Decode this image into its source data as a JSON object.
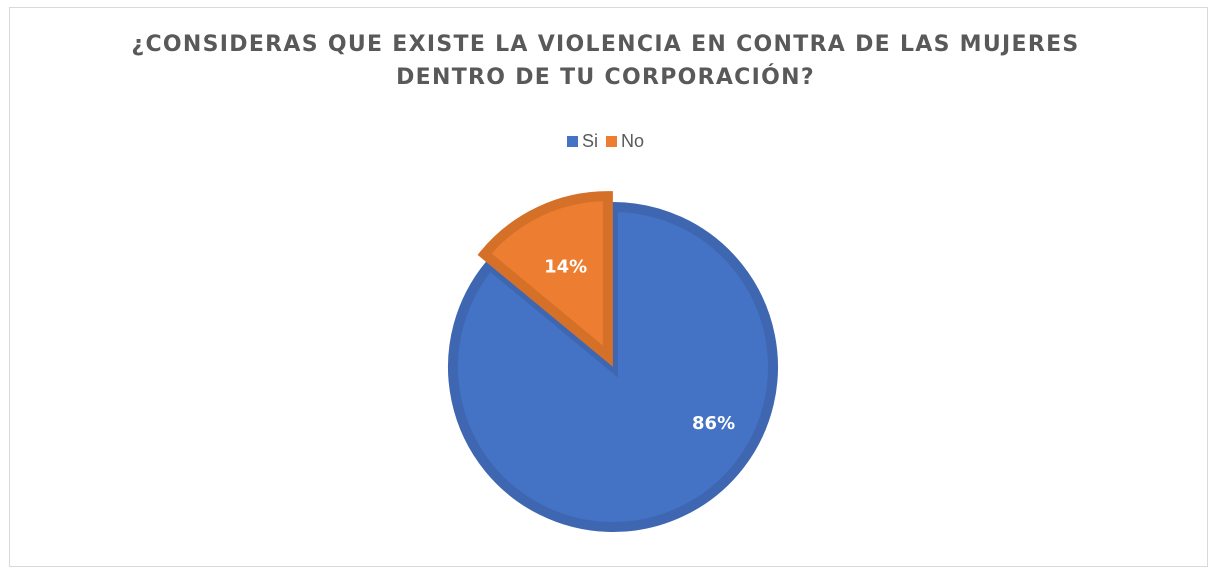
{
  "chart_data": {
    "type": "pie",
    "title": "¿CONSIDERAS QUE EXISTE LA VIOLENCIA EN CONTRA DE LAS MUJERES DENTRO DE TU CORPORACIÓN?",
    "title_lines": [
      "¿CONSIDERAS QUE EXISTE LA VIOLENCIA EN CONTRA DE LAS MUJERES",
      "DENTRO DE TU CORPORACIÓN?"
    ],
    "categories": [
      "Si",
      "No"
    ],
    "values": [
      86,
      14
    ],
    "data_labels": [
      "86%",
      "14%"
    ],
    "colors": [
      "#4472c4",
      "#ed7d31"
    ],
    "border_colors": [
      "#3f67b1",
      "#d57029"
    ],
    "legend_position": "top",
    "exploded_slice": "No"
  }
}
